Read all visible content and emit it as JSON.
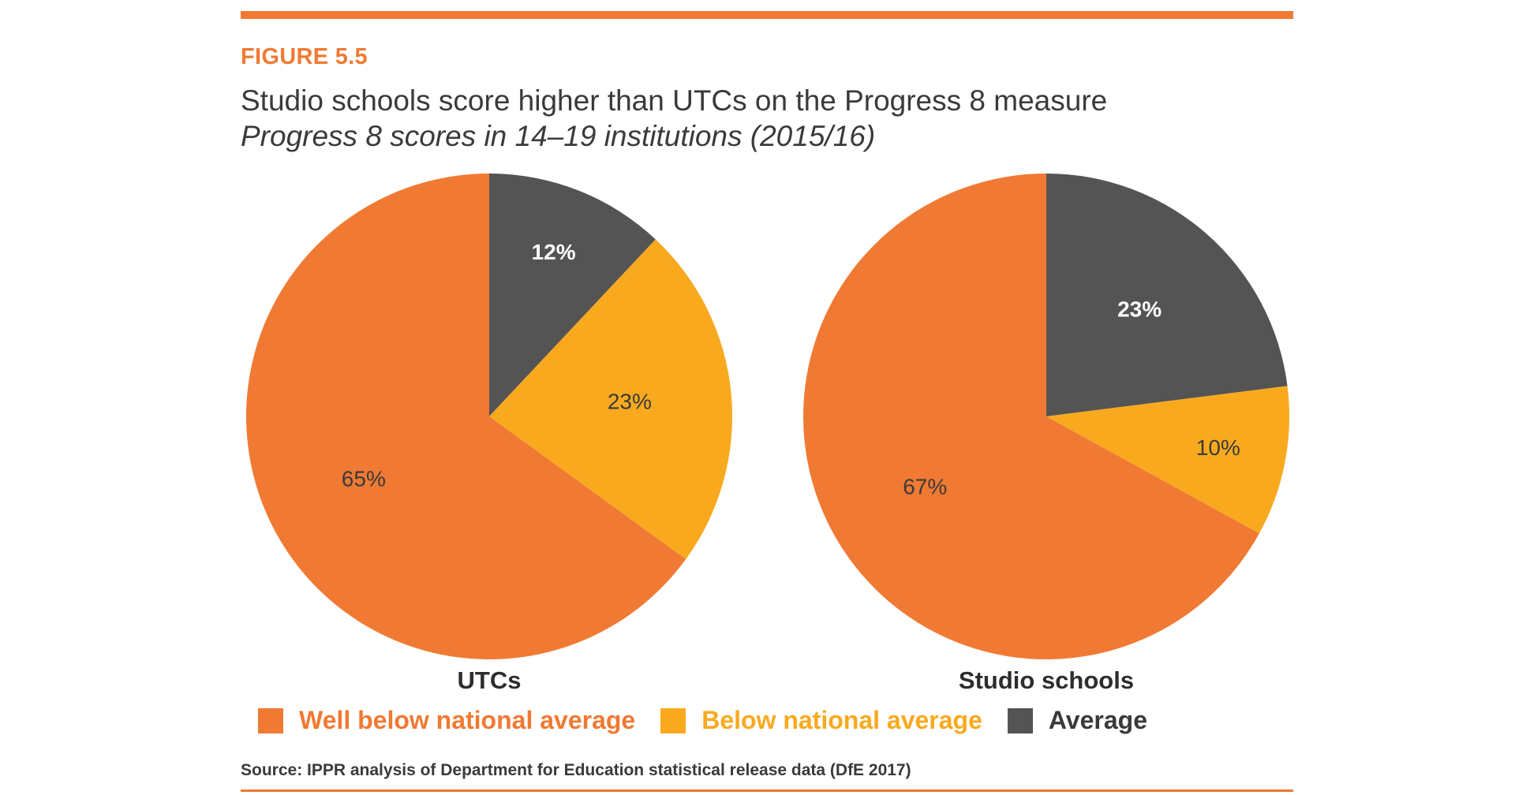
{
  "figure_label": "FIGURE 5.5",
  "title": "Studio schools score higher than UTCs on the Progress 8 measure",
  "subtitle": "Progress 8 scores in 14–19 institutions (2015/16)",
  "source": "Source: IPPR analysis of Department for Education statistical release data (DfE 2017)",
  "colors": {
    "accent": "#f07a33",
    "well_below": "#f07a33",
    "below": "#f9a91e",
    "average": "#545454",
    "text_dark": "#3a3a3a"
  },
  "legend": [
    {
      "label": "Well below national average",
      "color": "#f07a33",
      "text_color": "#f07a33"
    },
    {
      "label": "Below national average",
      "color": "#f9a91e",
      "text_color": "#f9a91e"
    },
    {
      "label": "Average",
      "color": "#545454",
      "text_color": "#3a3a3a"
    }
  ],
  "chart_data": [
    {
      "type": "pie",
      "name": "UTCs",
      "start": "top, clockwise",
      "slices": [
        {
          "category": "Average",
          "value": 12,
          "label": "12%",
          "color": "#545454",
          "label_color": "#ffffff"
        },
        {
          "category": "Below national average",
          "value": 23,
          "label": "23%",
          "color": "#f9a91e",
          "label_color": "#3a3a3a"
        },
        {
          "category": "Well below national average",
          "value": 65,
          "label": "65%",
          "color": "#f07a33",
          "label_color": "#3a3a3a"
        }
      ]
    },
    {
      "type": "pie",
      "name": "Studio schools",
      "start": "top, clockwise",
      "slices": [
        {
          "category": "Average",
          "value": 23,
          "label": "23%",
          "color": "#545454",
          "label_color": "#ffffff"
        },
        {
          "category": "Below national average",
          "value": 10,
          "label": "10%",
          "color": "#f9a91e",
          "label_color": "#3a3a3a"
        },
        {
          "category": "Well below national average",
          "value": 67,
          "label": "67%",
          "color": "#f07a33",
          "label_color": "#3a3a3a"
        }
      ]
    }
  ]
}
